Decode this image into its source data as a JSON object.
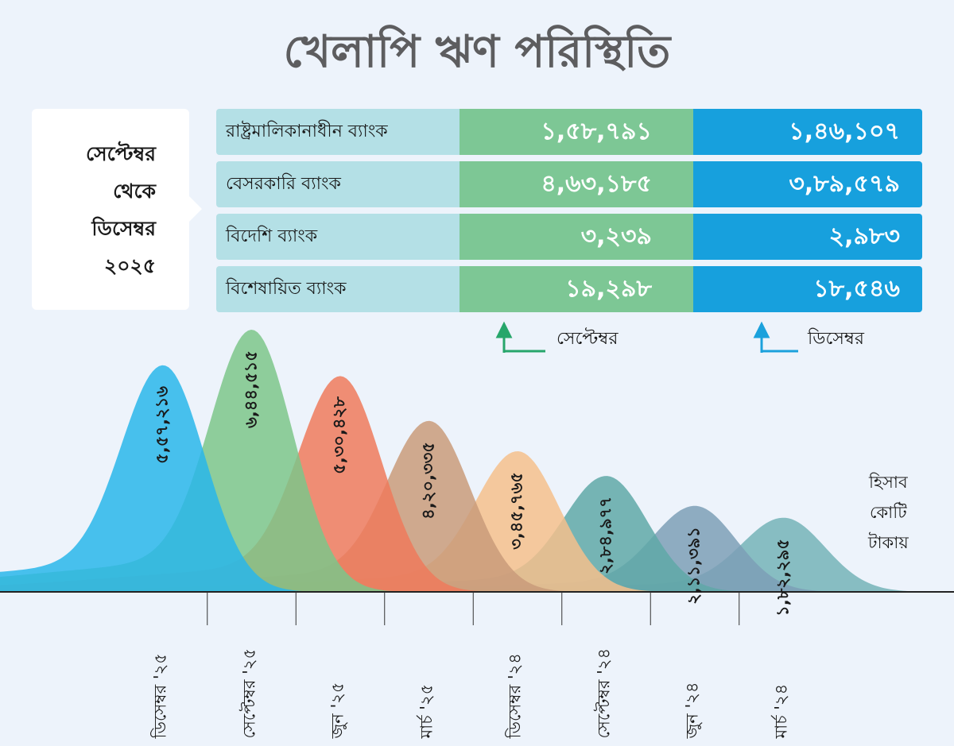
{
  "title": "খেলাপি ঋণ পরিস্থিতি",
  "callout": {
    "lines": [
      "সেপ্টেম্বর",
      "থেকে",
      "ডিসেম্বর",
      "২০২৫"
    ]
  },
  "table": {
    "rows": [
      {
        "label": "রাষ্ট্রমালিকানাধীন ব্যাংক",
        "september": "১,৫৮,৭৯১",
        "december": "১,৪৬,১০৭"
      },
      {
        "label": "বেসরকারি ব্যাংক",
        "september": "৪,৬৩,১৮৫",
        "december": "৩,৮৯,৫৭৯"
      },
      {
        "label": "বিদেশি ব্যাংক",
        "september": "৩,২৩৯",
        "december": "২,৯৮৩"
      },
      {
        "label": "বিশেষায়িত ব্যাংক",
        "september": "১৯,২৯৮",
        "december": "১৮,৫৪৬"
      }
    ]
  },
  "legend": {
    "september": "সেপ্টেম্বর",
    "december": "ডিসেম্বর",
    "september_color": "#27a66b",
    "december_color": "#1ba1dc"
  },
  "unit_lines": [
    "হিসাব",
    "কোটি",
    "টাকায়"
  ],
  "chart_data": {
    "type": "area",
    "title": "খেলাপি ঋণ পরিস্থিতি",
    "unit": "কোটি টাকা",
    "categories": [
      "ডিসেম্বর '২৫",
      "সেপ্টেম্বর '২৫",
      "জুন '২৫",
      "মার্চ '২৫",
      "ডিসেম্বর '২৪",
      "সেপ্টেম্বর '২৪",
      "জুন '২৪",
      "মার্চ '২৪"
    ],
    "values": [
      557216,
      644515,
      530428,
      420335,
      345765,
      284977,
      211391,
      182295
    ],
    "labels": [
      "৫,৫৭,২১৬",
      "৬,৪৪,৫১৫",
      "৫,৩০,৪২৮",
      "৪,২০,৩৩৫",
      "৩,৪৫,৭৬৫",
      "২,৮৪,৯৭৭",
      "২,১১,৩৯১",
      "১,৮২,২৯৫"
    ],
    "colors": [
      "#29b6ea",
      "#7cc68a",
      "#ef7a5c",
      "#c99b7a",
      "#f5c08c",
      "#5fa8a7",
      "#7d9fb6",
      "#74b3b7"
    ],
    "ylim": [
      0,
      650000
    ]
  }
}
